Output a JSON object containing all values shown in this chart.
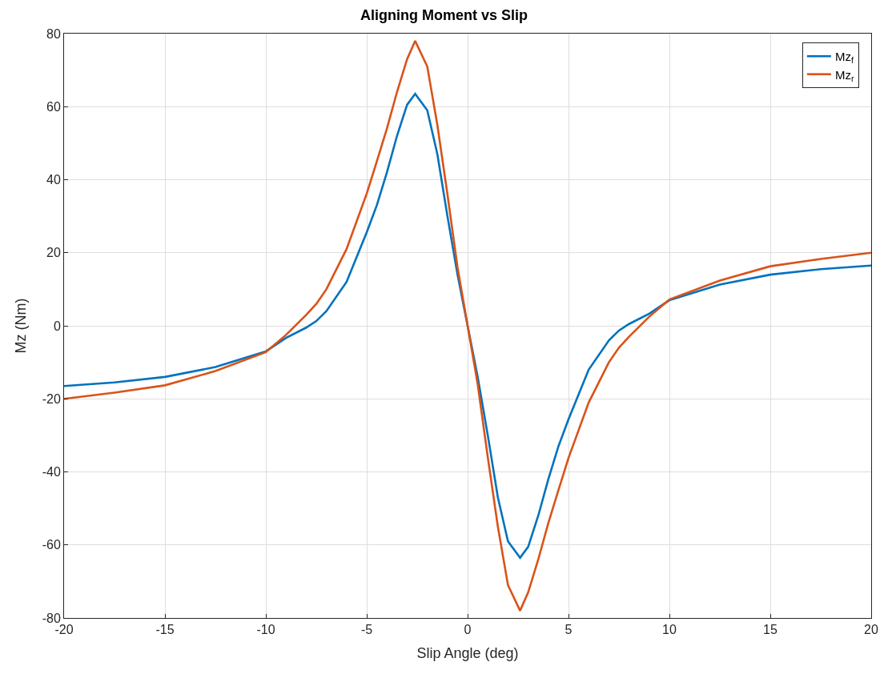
{
  "chart_data": {
    "type": "line",
    "title": "Aligning Moment vs Slip",
    "xlabel": "Slip Angle (deg)",
    "ylabel": "Mz (Nm)",
    "x": [
      -20,
      -17.5,
      -15,
      -12.5,
      -10,
      -9,
      -8,
      -7.5,
      -7,
      -6,
      -5,
      -4.5,
      -4,
      -3.5,
      -3,
      -2.6,
      -2,
      -1.5,
      -1,
      -0.5,
      0,
      0.5,
      1,
      1.5,
      2,
      2.6,
      3,
      3.5,
      4,
      4.5,
      5,
      6,
      7,
      7.5,
      8,
      9,
      10,
      12.5,
      15,
      17.5,
      20
    ],
    "series": [
      {
        "name": "Mz$_{f}$",
        "color": "#0072bd",
        "values": [
          -16.5,
          -15.5,
          -14,
          -11.3,
          -7,
          -3.3,
          -0.5,
          1.3,
          4,
          12,
          25.6,
          33,
          42,
          52,
          60.5,
          63.5,
          59,
          47,
          30,
          14,
          0,
          -14,
          -30,
          -47,
          -59,
          -63.5,
          -60.5,
          -52,
          -42,
          -33,
          -25.6,
          -12,
          -4,
          -1.3,
          0.5,
          3.3,
          7,
          11.3,
          14,
          15.5,
          16.5
        ]
      },
      {
        "name": "Mz$_{r}$",
        "color": "#d95319",
        "values": [
          -20,
          -18.3,
          -16.3,
          -12.4,
          -7.2,
          -2.5,
          3,
          6,
          10,
          21,
          36.2,
          45,
          54,
          64,
          73,
          78,
          71,
          55,
          36,
          16,
          0,
          -16,
          -36,
          -55,
          -71,
          -78,
          -73,
          -64,
          -54,
          -45,
          -36.2,
          -21,
          -10,
          -6,
          -3,
          2.5,
          7.2,
          12.4,
          16.3,
          18.3,
          20
        ]
      }
    ],
    "xlim": [
      -20,
      20
    ],
    "xticks": [
      -20,
      -15,
      -10,
      -5,
      0,
      5,
      10,
      15,
      20
    ],
    "ylim": [
      -80,
      80
    ],
    "yticks": [
      -80,
      -60,
      -40,
      -20,
      0,
      20,
      40,
      60,
      80
    ],
    "grid": true,
    "legend": "top right",
    "line_style": "solid",
    "marker": "none"
  }
}
